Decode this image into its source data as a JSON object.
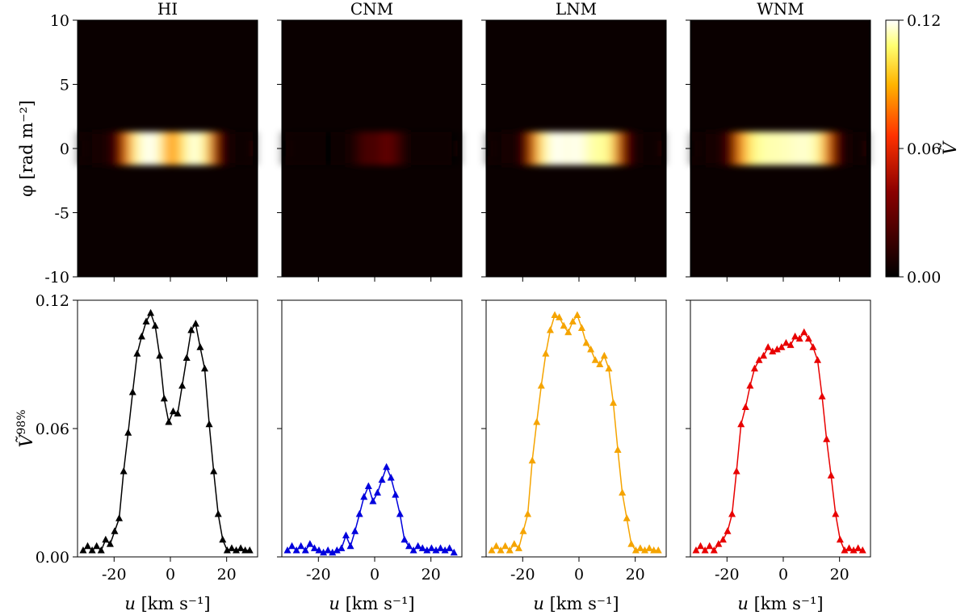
{
  "chart_data": {
    "type": "heatmap+line",
    "panel_titles": [
      "HI",
      "CNM",
      "LNM",
      "WNM"
    ],
    "heatmap": {
      "ylabel": "φ [rad m⁻²]",
      "ylim": [
        -10,
        10
      ],
      "yticks": [
        10,
        5,
        0,
        -5,
        -10
      ],
      "ytick_labels": [
        "10",
        "5",
        "0",
        "-5",
        "-10"
      ],
      "xlim": [
        -33,
        31
      ],
      "colormap": "afmhot",
      "colorbar": {
        "label": "Ṽ",
        "range": [
          0,
          0.12
        ],
        "ticks": [
          0.12,
          0.06,
          0.0
        ],
        "tick_labels": [
          "0.12",
          "0.06",
          "0.00"
        ]
      },
      "peak_scale": [
        1.0,
        0.4,
        1.0,
        1.0
      ]
    },
    "line": {
      "xlabel_var": "u",
      "xlabel_unit": "[km s⁻¹]",
      "ylabel_main": "Ṽ",
      "ylabel_sup": "98%",
      "xlim": [
        -33,
        31
      ],
      "ylim": [
        0,
        0.12
      ],
      "xticks": [
        -20,
        0,
        20
      ],
      "xtick_labels": [
        "-20",
        "0",
        "20"
      ],
      "yticks": [
        0.0,
        0.06,
        0.12
      ],
      "ytick_labels": [
        "0.00",
        "0.06",
        "0.12"
      ],
      "x": [
        -31,
        -29.4,
        -27.8,
        -26.2,
        -24.6,
        -23,
        -21.4,
        -19.8,
        -18.2,
        -16.6,
        -15,
        -13.4,
        -11.8,
        -10.2,
        -8.6,
        -7,
        -5.4,
        -3.8,
        -2.2,
        -0.6,
        1,
        2.6,
        4.2,
        5.8,
        7.4,
        9,
        10.6,
        12.2,
        13.8,
        15.4,
        17,
        18.6,
        20.2,
        21.8,
        23.4,
        25,
        26.6,
        28.2
      ],
      "series": [
        {
          "name": "HI",
          "color": "#000000",
          "values": [
            0.003,
            0.005,
            0.003,
            0.005,
            0.003,
            0.008,
            0.006,
            0.012,
            0.018,
            0.04,
            0.058,
            0.077,
            0.095,
            0.103,
            0.11,
            0.114,
            0.108,
            0.094,
            0.074,
            0.063,
            0.068,
            0.067,
            0.08,
            0.093,
            0.106,
            0.109,
            0.098,
            0.088,
            0.062,
            0.04,
            0.02,
            0.008,
            0.003,
            0.004,
            0.003,
            0.004,
            0.003,
            0.003
          ]
        },
        {
          "name": "CNM",
          "color": "#0000dd",
          "values": [
            0.003,
            0.005,
            0.003,
            0.005,
            0.003,
            0.006,
            0.004,
            0.003,
            0.002,
            0.003,
            0.002,
            0.003,
            0.004,
            0.01,
            0.005,
            0.012,
            0.02,
            0.028,
            0.033,
            0.026,
            0.03,
            0.036,
            0.042,
            0.037,
            0.029,
            0.02,
            0.008,
            0.005,
            0.003,
            0.005,
            0.004,
            0.003,
            0.004,
            0.003,
            0.004,
            0.003,
            0.004,
            0.002
          ]
        },
        {
          "name": "LNM",
          "color": "#f5a400",
          "values": [
            0.003,
            0.005,
            0.003,
            0.005,
            0.003,
            0.006,
            0.004,
            0.012,
            0.02,
            0.045,
            0.063,
            0.08,
            0.095,
            0.106,
            0.113,
            0.112,
            0.108,
            0.105,
            0.11,
            0.113,
            0.107,
            0.1,
            0.097,
            0.092,
            0.09,
            0.094,
            0.088,
            0.072,
            0.05,
            0.03,
            0.018,
            0.006,
            0.003,
            0.004,
            0.003,
            0.004,
            0.003,
            0.003
          ]
        },
        {
          "name": "WNM",
          "color": "#e80000",
          "values": [
            0.003,
            0.005,
            0.003,
            0.005,
            0.003,
            0.006,
            0.008,
            0.012,
            0.02,
            0.04,
            0.062,
            0.07,
            0.08,
            0.088,
            0.092,
            0.094,
            0.098,
            0.096,
            0.097,
            0.098,
            0.1,
            0.099,
            0.103,
            0.102,
            0.105,
            0.102,
            0.098,
            0.092,
            0.075,
            0.055,
            0.038,
            0.02,
            0.008,
            0.003,
            0.004,
            0.003,
            0.004,
            0.003
          ]
        }
      ]
    }
  }
}
